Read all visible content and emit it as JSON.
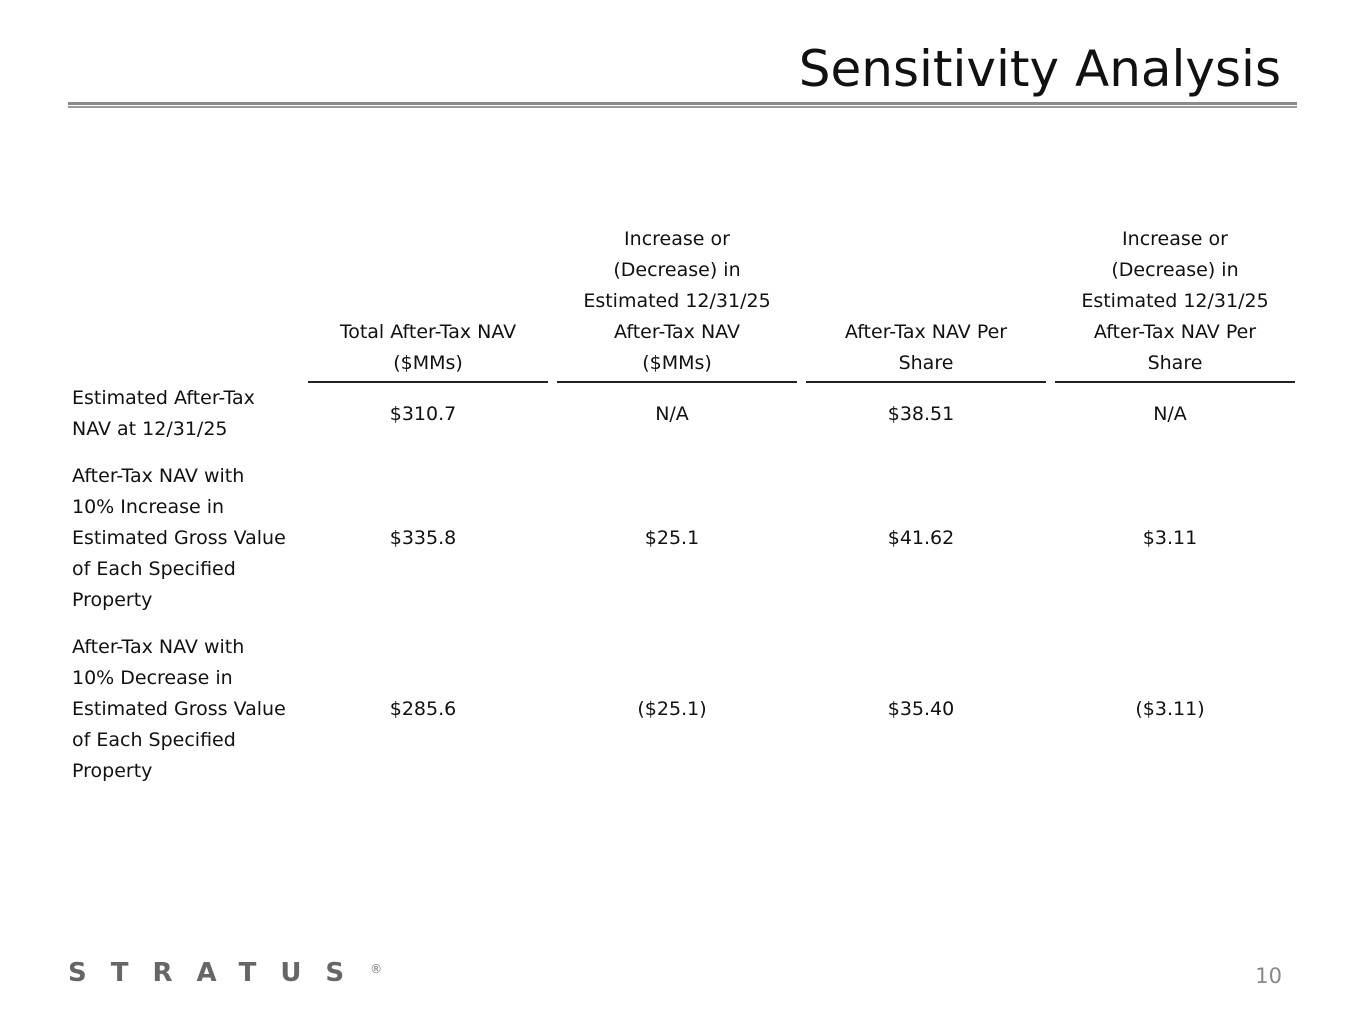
{
  "title": "Sensitivity Analysis",
  "table": {
    "headers": [
      "Total After-Tax NAV ($MMs)",
      "Increase or (Decrease) in Estimated 12/31/25 After-Tax NAV ($MMs)",
      "After-Tax NAV Per Share",
      "Increase or (Decrease) in Estimated 12/31/25 After-Tax NAV Per Share"
    ],
    "header_lines": [
      [
        "Total After-Tax NAV",
        "($MMs)"
      ],
      [
        "Increase or",
        "(Decrease) in",
        "Estimated 12/31/25",
        "After-Tax NAV",
        "($MMs)"
      ],
      [
        "After-Tax NAV Per",
        "Share"
      ],
      [
        "Increase or",
        "(Decrease) in",
        "Estimated 12/31/25",
        "After-Tax NAV Per",
        "Share"
      ]
    ],
    "rows": [
      {
        "label": "Estimated After-Tax NAV at 12/31/25",
        "values": [
          "$310.7",
          "N/A",
          "$38.51",
          "N/A"
        ]
      },
      {
        "label": "After-Tax NAV with 10% Increase in Estimated Gross Value of Each Specified Property",
        "values": [
          "$335.8",
          "$25.1",
          "$41.62",
          "$3.11"
        ]
      },
      {
        "label": "After-Tax NAV with 10% Decrease in Estimated Gross Value of Each Specified Property",
        "values": [
          "$285.6",
          "($25.1)",
          "$35.40",
          "($3.11)"
        ]
      }
    ]
  },
  "footer": {
    "logo": "STRATUS",
    "registered": "®",
    "page_number": "10"
  }
}
